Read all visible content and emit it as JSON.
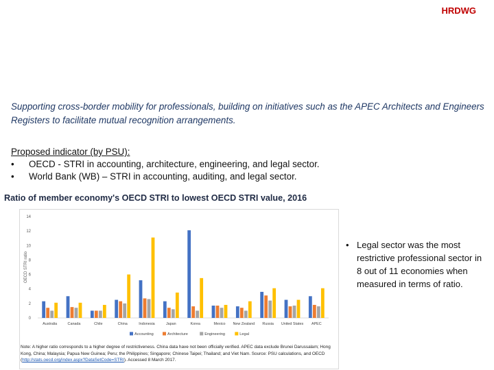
{
  "brand": "HRDWG",
  "intro": "Supporting cross-border mobility for professionals, building on initiatives such as the APEC Architects and Engineers Registers to facilitate mutual recognition arrangements.",
  "proposed": {
    "heading": "Proposed indicator (by PSU):",
    "items": [
      "OECD - STRI in accounting, architecture, engineering, and legal sector.",
      "World Bank (WB) – STRI in accounting, auditing, and legal sector."
    ]
  },
  "chart_title": "Ratio of member economy's OECD STRI to lowest OECD STRI value, 2016",
  "takeaway": "Legal sector was the most restrictive professional sector in 8 out of 11 economies when measured in terms of ratio.",
  "note": {
    "text": "Note: A higher ratio corresponds to a higher degree of restrictiveness. China data have not been officially verified. APEC data exclude Brunei Darussalam; Hong Kong, China; Malaysia; Papua New Guinea; Peru; the Philippines; Singapore; Chinese Taipei; Thailand; and Viet Nam.",
    "source_prefix": "Source: PSU calculations, and OECD (",
    "link": "http://stats.oecd.org/index.aspx?DataSetCode=STRI",
    "source_suffix": "). Accessed 8 March 2017."
  },
  "colors": {
    "accounting": "#4472c4",
    "architecture": "#ed7d31",
    "engineering": "#a5a5a5",
    "legal": "#ffc000"
  },
  "chart_data": {
    "type": "bar",
    "title": "Ratio of member economy's OECD STRI to lowest OECD STRI value, 2016",
    "xlabel": "",
    "ylabel": "OECD STRI ratio",
    "ylim": [
      0,
      14
    ],
    "yticks": [
      0,
      2,
      4,
      6,
      8,
      10,
      12,
      14
    ],
    "grid": false,
    "legend": "bottom",
    "categories": [
      "Australia",
      "Canada",
      "Chile",
      "China",
      "Indonesia",
      "Japan",
      "Korea",
      "Mexico",
      "New Zealand",
      "Russia",
      "United States",
      "APEC"
    ],
    "series": [
      {
        "name": "Accounting",
        "values": [
          2.3,
          3.0,
          1.0,
          2.5,
          5.2,
          2.3,
          12.1,
          1.7,
          1.6,
          3.6,
          2.5,
          3.0
        ]
      },
      {
        "name": "Architecture",
        "values": [
          1.4,
          1.5,
          1.0,
          2.3,
          2.7,
          1.4,
          1.6,
          1.7,
          1.4,
          3.1,
          1.6,
          1.8
        ]
      },
      {
        "name": "Engineering",
        "values": [
          1.0,
          1.4,
          1.0,
          2.0,
          2.6,
          1.2,
          1.0,
          1.4,
          1.0,
          2.4,
          1.7,
          1.6
        ]
      },
      {
        "name": "Legal",
        "values": [
          2.1,
          2.1,
          1.8,
          6.0,
          11.1,
          3.5,
          5.5,
          1.8,
          2.3,
          4.1,
          2.5,
          4.1
        ]
      }
    ]
  }
}
